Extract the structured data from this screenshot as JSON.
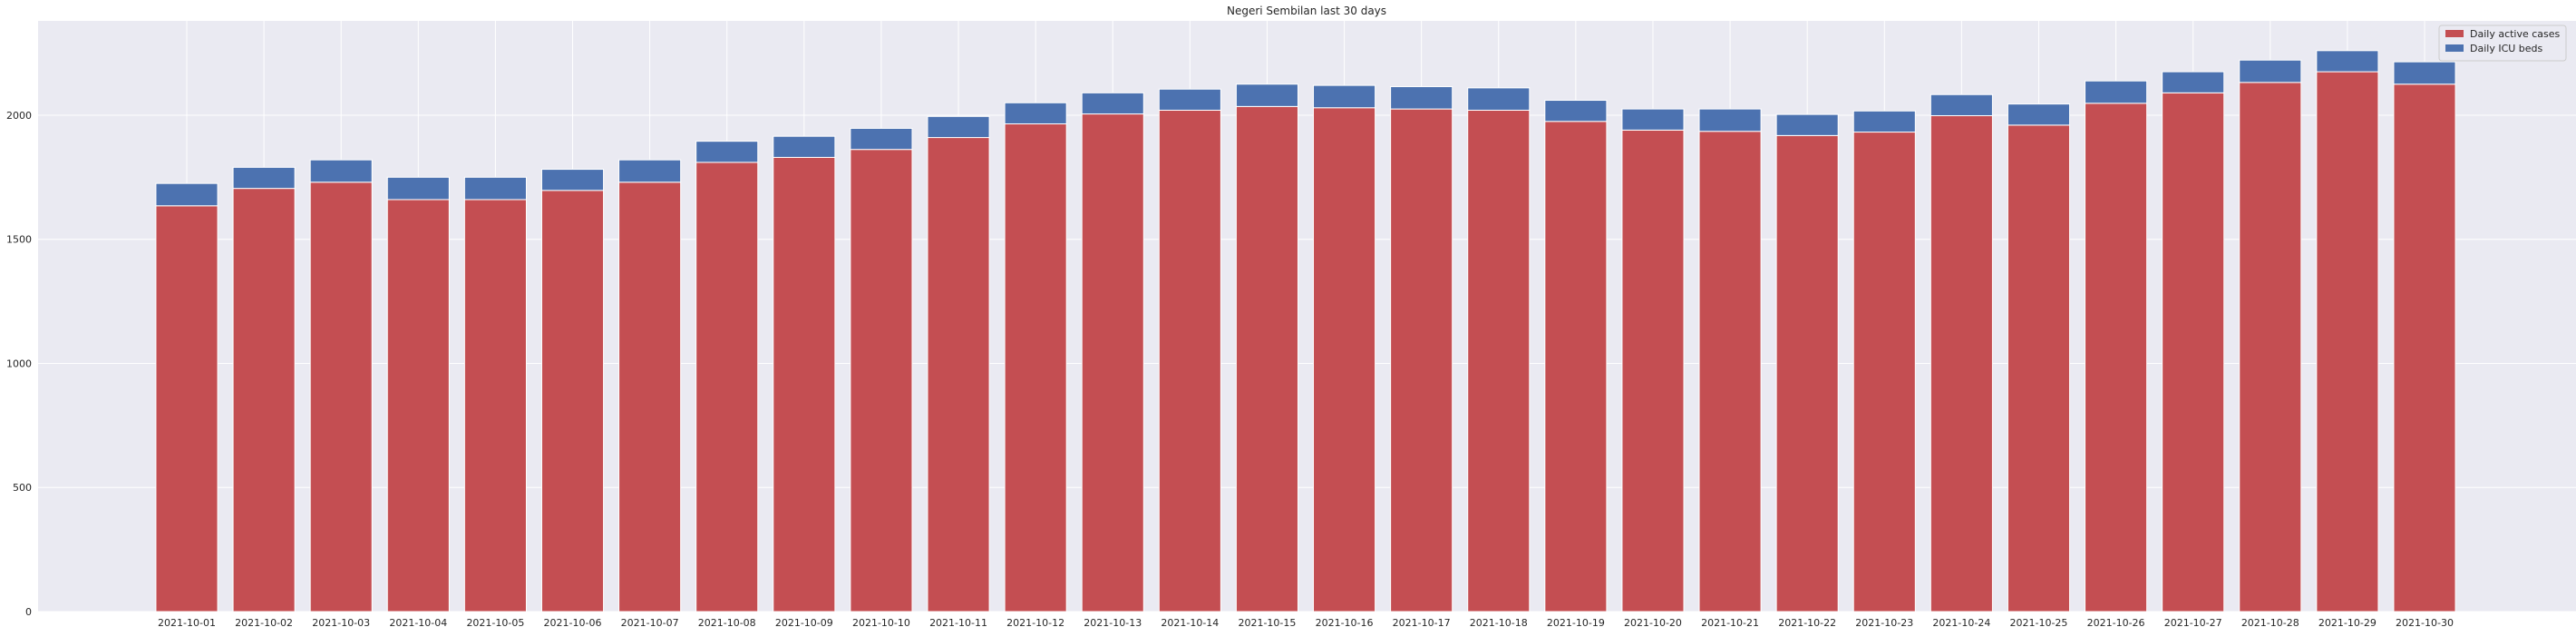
{
  "chart_data": {
    "type": "bar",
    "stacked": true,
    "title": "Negeri Sembilan last 30 days",
    "xlabel": "",
    "ylabel": "",
    "categories": [
      "2021-10-01",
      "2021-10-02",
      "2021-10-03",
      "2021-10-04",
      "2021-10-05",
      "2021-10-06",
      "2021-10-07",
      "2021-10-08",
      "2021-10-09",
      "2021-10-10",
      "2021-10-11",
      "2021-10-12",
      "2021-10-13",
      "2021-10-14",
      "2021-10-15",
      "2021-10-16",
      "2021-10-17",
      "2021-10-18",
      "2021-10-19",
      "2021-10-20",
      "2021-10-21",
      "2021-10-22",
      "2021-10-23",
      "2021-10-24",
      "2021-10-25",
      "2021-10-26",
      "2021-10-27",
      "2021-10-28",
      "2021-10-29",
      "2021-10-30"
    ],
    "series": [
      {
        "name": "Daily active cases",
        "color": "#c44e52",
        "values": [
          1635,
          1705,
          1730,
          1660,
          1660,
          1697,
          1730,
          1810,
          1830,
          1862,
          1910,
          1965,
          2005,
          2020,
          2035,
          2030,
          2025,
          2020,
          1975,
          1940,
          1935,
          1918,
          1932,
          1998,
          1960,
          2048,
          2090,
          2132,
          2175,
          2125
        ]
      },
      {
        "name": "Daily ICU beds",
        "color": "#4c72b0",
        "values": [
          90,
          85,
          90,
          90,
          90,
          85,
          90,
          85,
          85,
          85,
          85,
          85,
          85,
          85,
          90,
          90,
          90,
          90,
          85,
          85,
          90,
          85,
          85,
          85,
          85,
          90,
          85,
          90,
          85,
          90
        ]
      }
    ],
    "ylim": [
      0,
      2380
    ],
    "yticks": [
      0,
      500,
      1000,
      1500,
      2000
    ],
    "grid": true,
    "legend_position": "top-right"
  }
}
